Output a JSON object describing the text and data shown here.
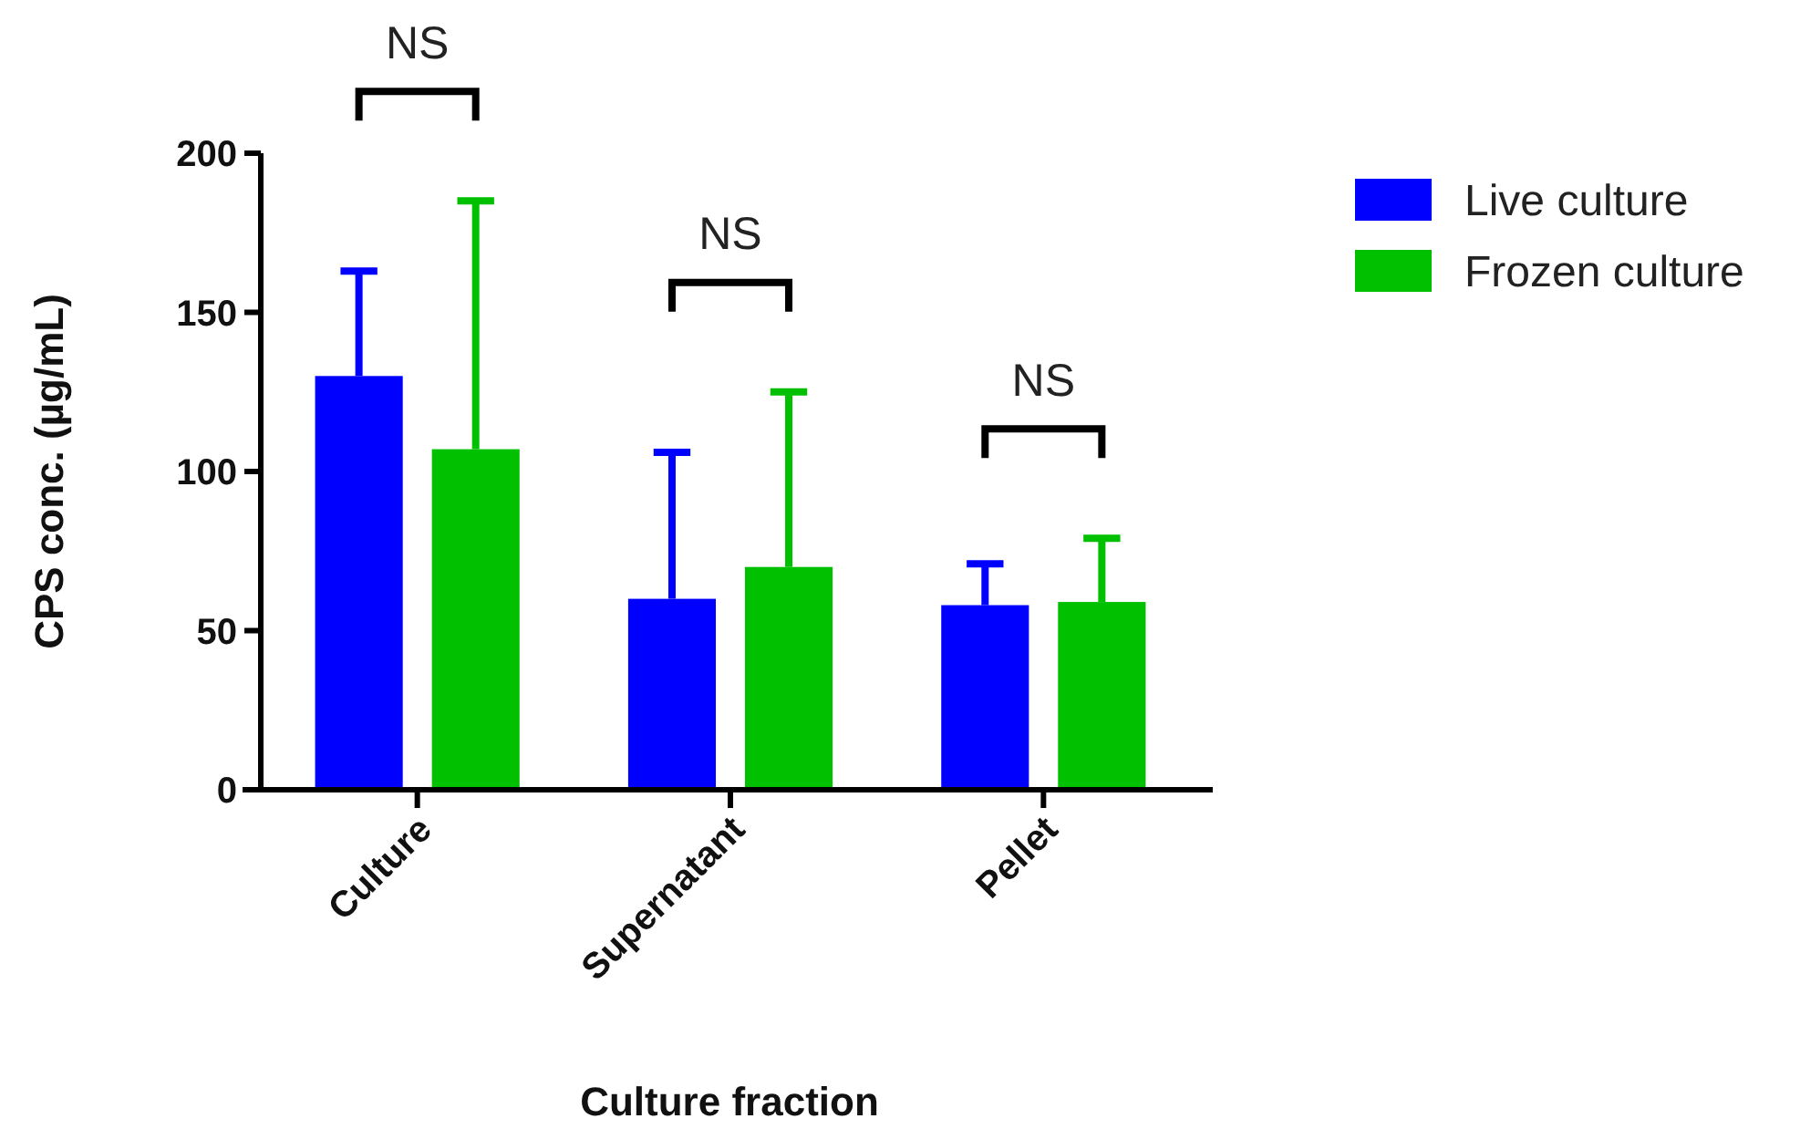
{
  "chart_data": {
    "type": "bar",
    "xlabel": "Culture fraction",
    "ylabel": "CPS conc. (µg/mL)",
    "categories": [
      "Culture",
      "Supernatant",
      "Pellet"
    ],
    "series": [
      {
        "name": "Live culture",
        "color": "#0000ff",
        "values": [
          130,
          60,
          58
        ],
        "errors": [
          [
            130,
            163
          ],
          [
            60,
            106
          ],
          [
            58,
            71
          ]
        ]
      },
      {
        "name": "Frozen culture",
        "color": "#00c000",
        "values": [
          107,
          70,
          59
        ],
        "errors": [
          [
            107,
            185
          ],
          [
            70,
            125
          ],
          [
            59,
            79
          ]
        ]
      }
    ],
    "ylim": [
      0,
      200
    ],
    "yticks": [
      0,
      50,
      100,
      150,
      200
    ],
    "grid": false,
    "legend": "top right",
    "annotations": [
      "NS",
      "NS",
      "NS"
    ]
  }
}
